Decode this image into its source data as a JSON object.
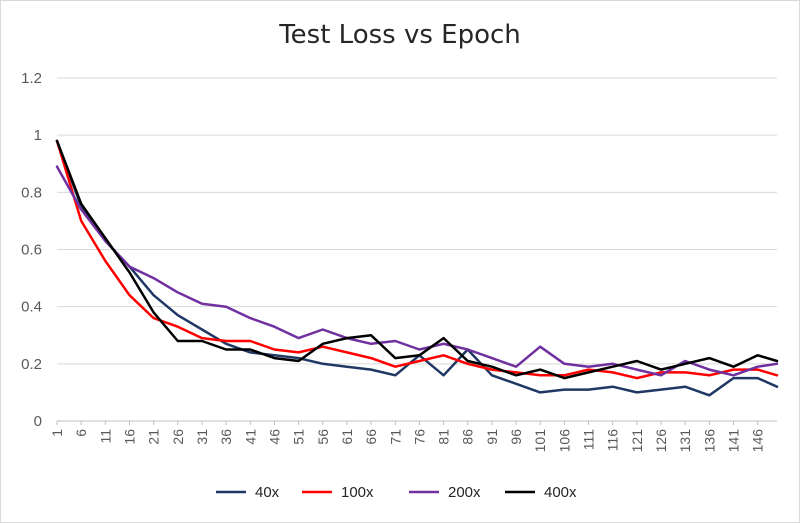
{
  "chart_data": {
    "type": "line",
    "title": "Test Loss vs Epoch",
    "xlabel": "",
    "ylabel": "",
    "xlim": [
      1,
      150
    ],
    "ylim": [
      0,
      1.2
    ],
    "y_ticks": [
      "0",
      "0.2",
      "0.4",
      "0.6",
      "0.8",
      "1",
      "1.2"
    ],
    "x_tick_labels": [
      "1",
      "6",
      "11",
      "16",
      "21",
      "26",
      "31",
      "36",
      "41",
      "46",
      "51",
      "56",
      "61",
      "66",
      "71",
      "76",
      "81",
      "86",
      "91",
      "96",
      "101",
      "106",
      "111",
      "116",
      "121",
      "126",
      "131",
      "136",
      "141",
      "146"
    ],
    "grid": "horizontal",
    "legend_position": "bottom",
    "x_keyframes": [
      1,
      6,
      11,
      16,
      21,
      26,
      31,
      36,
      41,
      46,
      51,
      56,
      61,
      66,
      71,
      76,
      81,
      86,
      91,
      96,
      101,
      106,
      111,
      116,
      121,
      126,
      131,
      136,
      141,
      146,
      150
    ],
    "series": [
      {
        "name": "40x",
        "color": "#1f3864",
        "values": [
          0.98,
          0.75,
          0.63,
          0.54,
          0.44,
          0.37,
          0.32,
          0.27,
          0.24,
          0.23,
          0.22,
          0.2,
          0.19,
          0.18,
          0.16,
          0.23,
          0.16,
          0.25,
          0.16,
          0.13,
          0.1,
          0.11,
          0.11,
          0.12,
          0.1,
          0.11,
          0.12,
          0.09,
          0.15,
          0.15,
          0.12
        ]
      },
      {
        "name": "100x",
        "color": "#ff0000",
        "values": [
          0.98,
          0.7,
          0.56,
          0.44,
          0.36,
          0.33,
          0.29,
          0.28,
          0.28,
          0.25,
          0.24,
          0.26,
          0.24,
          0.22,
          0.19,
          0.21,
          0.23,
          0.2,
          0.18,
          0.17,
          0.16,
          0.16,
          0.18,
          0.17,
          0.15,
          0.17,
          0.17,
          0.16,
          0.18,
          0.18,
          0.16
        ]
      },
      {
        "name": "200x",
        "color": "#7030a0",
        "values": [
          0.89,
          0.74,
          0.63,
          0.54,
          0.5,
          0.45,
          0.41,
          0.4,
          0.36,
          0.33,
          0.29,
          0.32,
          0.29,
          0.27,
          0.28,
          0.25,
          0.27,
          0.25,
          0.22,
          0.19,
          0.26,
          0.2,
          0.19,
          0.2,
          0.18,
          0.16,
          0.21,
          0.18,
          0.16,
          0.19,
          0.2
        ]
      },
      {
        "name": "400x",
        "color": "#000000",
        "values": [
          0.98,
          0.76,
          0.64,
          0.52,
          0.38,
          0.28,
          0.28,
          0.25,
          0.25,
          0.22,
          0.21,
          0.27,
          0.29,
          0.3,
          0.22,
          0.23,
          0.29,
          0.21,
          0.19,
          0.16,
          0.18,
          0.15,
          0.17,
          0.19,
          0.21,
          0.18,
          0.2,
          0.22,
          0.19,
          0.23,
          0.21
        ]
      }
    ]
  }
}
